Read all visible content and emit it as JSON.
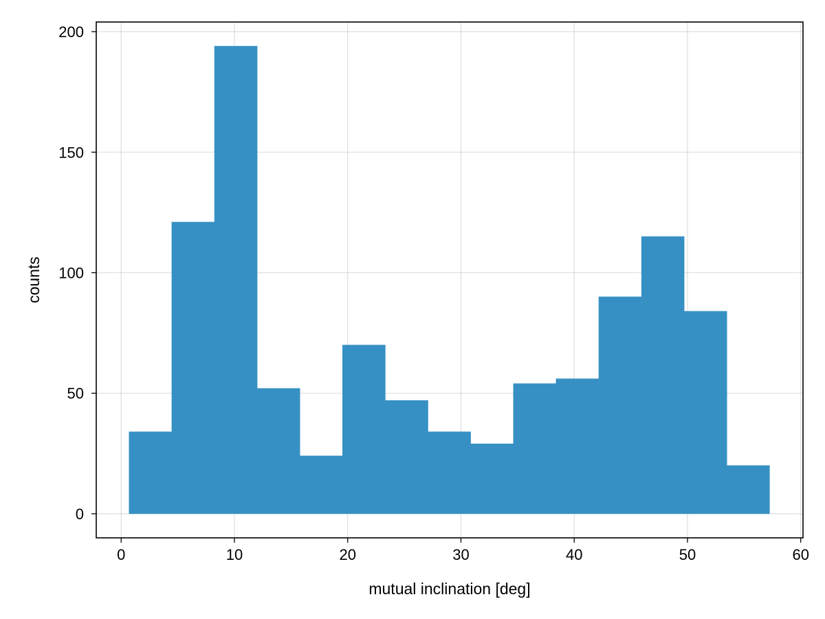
{
  "chart_data": {
    "type": "bar",
    "subtype": "histogram",
    "xlabel": "mutual inclination [deg]",
    "ylabel": "counts",
    "xlim": [
      -2.2,
      60.2
    ],
    "ylim": [
      -10,
      204
    ],
    "xticks": [
      0,
      10,
      20,
      30,
      40,
      50,
      60
    ],
    "yticks": [
      0,
      50,
      100,
      150,
      200
    ],
    "grid": true,
    "bar_color": "#3690c4",
    "bins": [
      {
        "x0": 0.7,
        "x1": 4.47,
        "count": 34
      },
      {
        "x0": 4.47,
        "x1": 8.24,
        "count": 121
      },
      {
        "x0": 8.24,
        "x1": 12.01,
        "count": 194
      },
      {
        "x0": 12.01,
        "x1": 15.78,
        "count": 52
      },
      {
        "x0": 15.78,
        "x1": 19.55,
        "count": 24
      },
      {
        "x0": 19.55,
        "x1": 23.32,
        "count": 70
      },
      {
        "x0": 23.32,
        "x1": 27.09,
        "count": 47
      },
      {
        "x0": 27.09,
        "x1": 30.86,
        "count": 34
      },
      {
        "x0": 30.86,
        "x1": 34.63,
        "count": 29
      },
      {
        "x0": 34.63,
        "x1": 38.4,
        "count": 54
      },
      {
        "x0": 38.4,
        "x1": 42.17,
        "count": 56
      },
      {
        "x0": 42.17,
        "x1": 45.94,
        "count": 90
      },
      {
        "x0": 45.94,
        "x1": 49.71,
        "count": 115
      },
      {
        "x0": 49.71,
        "x1": 53.48,
        "count": 84
      },
      {
        "x0": 53.48,
        "x1": 57.25,
        "count": 20
      }
    ]
  }
}
